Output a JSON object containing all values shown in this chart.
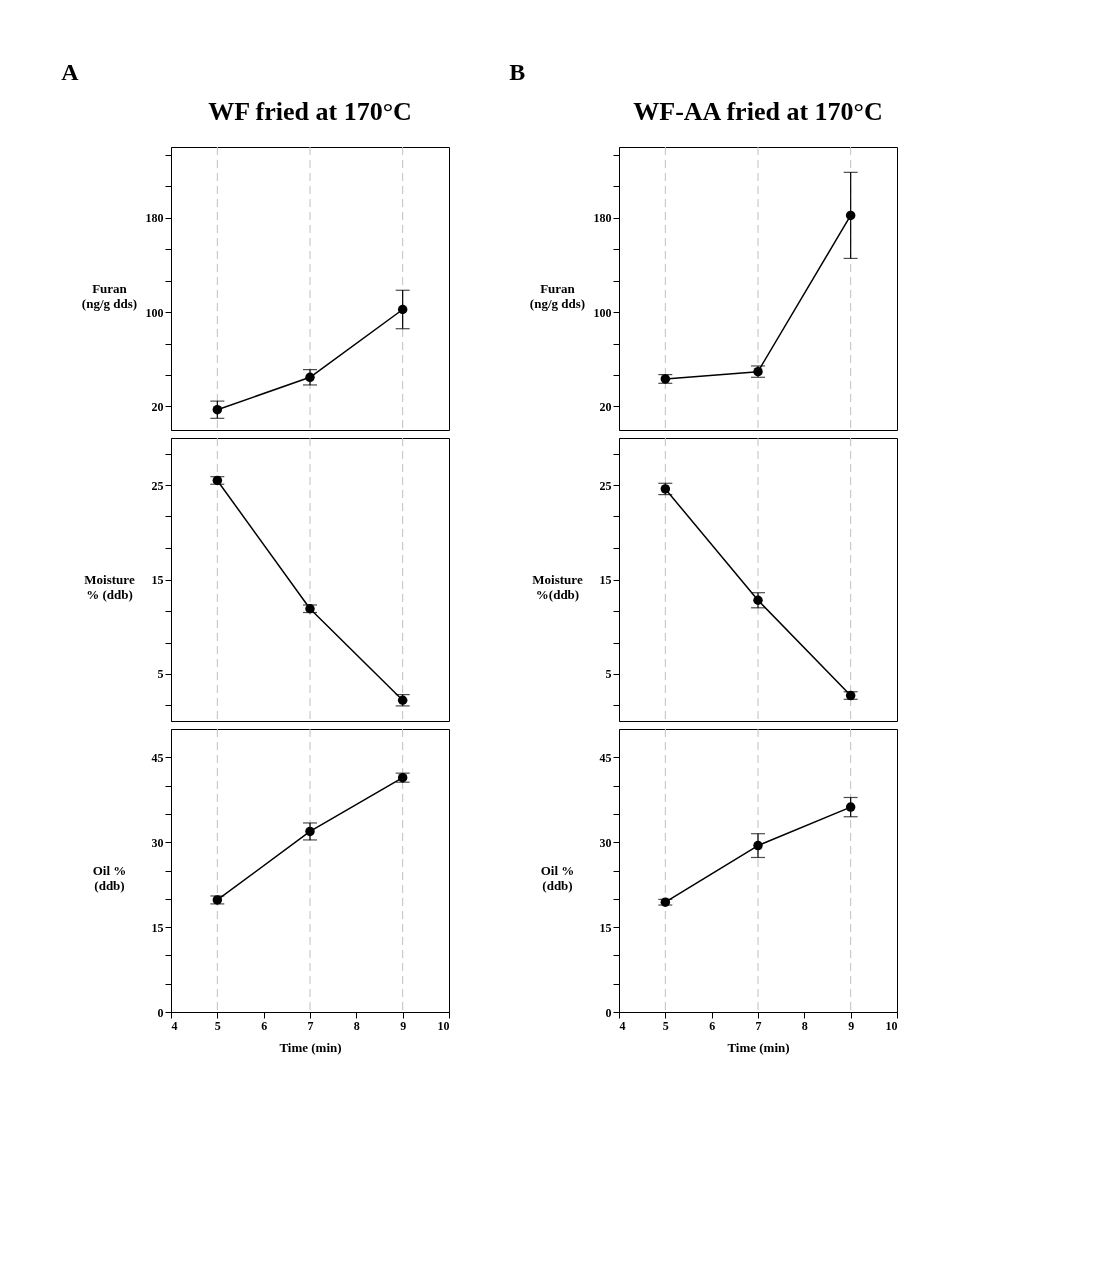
{
  "chart_data": [
    {
      "type": "line",
      "title": "WF fried at 170°C",
      "annotations": [
        "A"
      ],
      "ylabel": "Furan\n(ng/g dds)",
      "x": [
        5,
        7,
        9
      ],
      "xlim": [
        4,
        10
      ],
      "ylim": [
        0,
        240
      ],
      "yticks": [
        20,
        {
          "value": 46.7,
          "label": null
        },
        {
          "value": 73.3,
          "label": null
        },
        100,
        {
          "value": 126.7,
          "label": null
        },
        {
          "value": 153.3,
          "label": null
        },
        180,
        {
          "value": 206.7,
          "label": null
        },
        {
          "value": 233.3,
          "label": null
        }
      ],
      "tick_labels": "y",
      "grid": false,
      "marker": "circle",
      "line_style": "solid",
      "series": [
        {
          "color": "#000000",
          "values": [
            17.2,
            44.7,
            102.2
          ],
          "errors": [
            7.3,
            6.5,
            16.3
          ]
        }
      ],
      "ref_lines": [
        {
          "axis": "x",
          "value": 5,
          "color": "#c0c0c0",
          "line_style": "dashed"
        },
        {
          "axis": "x",
          "value": 7,
          "color": "#c0c0c0",
          "line_style": "dashed"
        },
        {
          "axis": "x",
          "value": 9,
          "color": "#c0c0c0",
          "line_style": "dashed"
        }
      ]
    },
    {
      "type": "line",
      "ylabel": "Moisture\n% (ddb)",
      "x": [
        5,
        7,
        9
      ],
      "xlim": [
        4,
        10
      ],
      "ylim": [
        0,
        30
      ],
      "yticks": [
        {
          "value": 1.7,
          "label": null
        },
        5,
        {
          "value": 8.3,
          "label": null
        },
        {
          "value": 11.7,
          "label": null
        },
        15,
        {
          "value": 18.3,
          "label": null
        },
        {
          "value": 21.7,
          "label": null
        },
        25,
        {
          "value": 28.3,
          "label": null
        }
      ],
      "tick_labels": "y",
      "grid": false,
      "marker": "circle",
      "line_style": "solid",
      "series": [
        {
          "color": "#000000",
          "values": [
            25.5,
            11.9,
            2.2
          ],
          "errors": [
            0.4,
            0.4,
            0.6
          ]
        }
      ],
      "ref_lines": [
        {
          "axis": "x",
          "value": 5,
          "color": "#c0c0c0",
          "line_style": "dashed"
        },
        {
          "axis": "x",
          "value": 7,
          "color": "#c0c0c0",
          "line_style": "dashed"
        },
        {
          "axis": "x",
          "value": 9,
          "color": "#c0c0c0",
          "line_style": "dashed"
        }
      ]
    },
    {
      "type": "line",
      "ylabel": "Oil %\n(ddb)",
      "xlabel": "Time (min)",
      "x": [
        5,
        7,
        9
      ],
      "xlim": [
        4,
        10
      ],
      "xticks": [
        4,
        5,
        6,
        7,
        8,
        9,
        10
      ],
      "ylim": [
        0,
        50
      ],
      "yticks": [
        0,
        {
          "value": 5,
          "label": null
        },
        {
          "value": 10,
          "label": null
        },
        15,
        {
          "value": 20,
          "label": null
        },
        {
          "value": 25,
          "label": null
        },
        30,
        {
          "value": 35,
          "label": null
        },
        {
          "value": 40,
          "label": null
        },
        45
      ],
      "grid": false,
      "marker": "circle",
      "line_style": "solid",
      "series": [
        {
          "color": "#000000",
          "values": [
            19.8,
            31.9,
            41.4
          ],
          "errors": [
            0.7,
            1.5,
            0.8
          ]
        }
      ],
      "ref_lines": [
        {
          "axis": "x",
          "value": 5,
          "color": "#c0c0c0",
          "line_style": "dashed"
        },
        {
          "axis": "x",
          "value": 7,
          "color": "#c0c0c0",
          "line_style": "dashed"
        },
        {
          "axis": "x",
          "value": 9,
          "color": "#c0c0c0",
          "line_style": "dashed"
        }
      ]
    },
    {
      "type": "line",
      "title": "WF-AA fried at 170°C",
      "annotations": [
        "B"
      ],
      "ylabel": "Furan\n(ng/g dds)",
      "x": [
        5,
        7,
        9
      ],
      "xlim": [
        4,
        10
      ],
      "ylim": [
        0,
        240
      ],
      "yticks": [
        20,
        {
          "value": 46.7,
          "label": null
        },
        {
          "value": 73.3,
          "label": null
        },
        100,
        {
          "value": 126.7,
          "label": null
        },
        {
          "value": 153.3,
          "label": null
        },
        180,
        {
          "value": 206.7,
          "label": null
        },
        {
          "value": 233.3,
          "label": null
        }
      ],
      "tick_labels": "y",
      "grid": false,
      "marker": "circle",
      "line_style": "solid",
      "series": [
        {
          "color": "#000000",
          "values": [
            43.3,
            49.5,
            182
          ],
          "errors": [
            3.7,
            4.8,
            36.5
          ]
        }
      ],
      "ref_lines": [
        {
          "axis": "x",
          "value": 5,
          "color": "#c0c0c0",
          "line_style": "dashed"
        },
        {
          "axis": "x",
          "value": 7,
          "color": "#c0c0c0",
          "line_style": "dashed"
        },
        {
          "axis": "x",
          "value": 9,
          "color": "#c0c0c0",
          "line_style": "dashed"
        }
      ]
    },
    {
      "type": "line",
      "ylabel": "Moisture\n%(ddb)",
      "x": [
        5,
        7,
        9
      ],
      "xlim": [
        4,
        10
      ],
      "ylim": [
        0,
        30
      ],
      "yticks": [
        {
          "value": 1.7,
          "label": null
        },
        5,
        {
          "value": 8.3,
          "label": null
        },
        {
          "value": 11.7,
          "label": null
        },
        15,
        {
          "value": 18.3,
          "label": null
        },
        {
          "value": 21.7,
          "label": null
        },
        25,
        {
          "value": 28.3,
          "label": null
        }
      ],
      "tick_labels": "y",
      "grid": false,
      "marker": "circle",
      "line_style": "solid",
      "series": [
        {
          "color": "#000000",
          "values": [
            24.6,
            12.8,
            2.7
          ],
          "errors": [
            0.6,
            0.8,
            0.4
          ]
        }
      ],
      "ref_lines": [
        {
          "axis": "x",
          "value": 5,
          "color": "#c0c0c0",
          "line_style": "dashed"
        },
        {
          "axis": "x",
          "value": 7,
          "color": "#c0c0c0",
          "line_style": "dashed"
        },
        {
          "axis": "x",
          "value": 9,
          "color": "#c0c0c0",
          "line_style": "dashed"
        }
      ]
    },
    {
      "type": "line",
      "ylabel": "Oil %\n(ddb)",
      "xlabel": "Time (min)",
      "x": [
        5,
        7,
        9
      ],
      "xlim": [
        4,
        10
      ],
      "xticks": [
        4,
        5,
        6,
        7,
        8,
        9,
        10
      ],
      "ylim": [
        0,
        50
      ],
      "yticks": [
        0,
        {
          "value": 5,
          "label": null
        },
        {
          "value": 10,
          "label": null
        },
        15,
        {
          "value": 20,
          "label": null
        },
        {
          "value": 25,
          "label": null
        },
        30,
        {
          "value": 35,
          "label": null
        },
        {
          "value": 40,
          "label": null
        },
        45
      ],
      "grid": false,
      "marker": "circle",
      "line_style": "solid",
      "series": [
        {
          "color": "#000000",
          "values": [
            19.4,
            29.4,
            36.2
          ],
          "errors": [
            0.5,
            2.1,
            1.7
          ]
        }
      ],
      "ref_lines": [
        {
          "axis": "x",
          "value": 5,
          "color": "#c0c0c0",
          "line_style": "dashed"
        },
        {
          "axis": "x",
          "value": 7,
          "color": "#c0c0c0",
          "line_style": "dashed"
        },
        {
          "axis": "x",
          "value": 9,
          "color": "#c0c0c0",
          "line_style": "dashed"
        }
      ]
    }
  ]
}
